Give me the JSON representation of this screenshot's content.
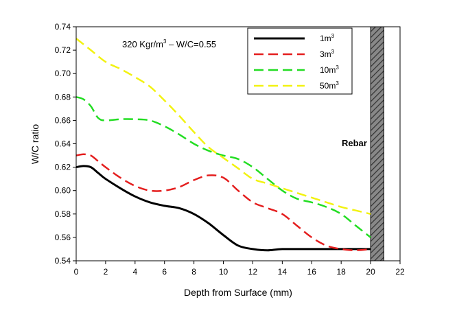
{
  "chart_data": {
    "type": "line",
    "annotation": {
      "text": "320 Kgr/m",
      "sup": "3",
      "suffix": " – W/C=0.55"
    },
    "rebar_label": "Rebar",
    "rebar_x_range": [
      20,
      20.9
    ],
    "xlabel": "Depth from Surface (mm)",
    "ylabel": "W/C ratio",
    "xlim": [
      0,
      22
    ],
    "ylim": [
      0.54,
      0.74
    ],
    "x_ticks": [
      0,
      2,
      4,
      6,
      8,
      10,
      12,
      14,
      16,
      18,
      20,
      22
    ],
    "y_ticks": [
      "0.54",
      "0.56",
      "0.58",
      "0.60",
      "0.62",
      "0.64",
      "0.66",
      "0.68",
      "0.70",
      "0.72",
      "0.74"
    ],
    "grid": false,
    "legend_position": "top-right",
    "series": [
      {
        "name": "1m",
        "name_sup": "3",
        "color": "#000000",
        "dash": "solid",
        "x": [
          0,
          0.5,
          1,
          1.5,
          2,
          3,
          4,
          5,
          6,
          7,
          8,
          9,
          10,
          11,
          12,
          13,
          14,
          16,
          18,
          19,
          20
        ],
        "y": [
          0.62,
          0.621,
          0.62,
          0.615,
          0.61,
          0.602,
          0.595,
          0.59,
          0.587,
          0.585,
          0.58,
          0.572,
          0.562,
          0.553,
          0.55,
          0.549,
          0.55,
          0.55,
          0.55,
          0.55,
          0.55
        ]
      },
      {
        "name": "3m",
        "name_sup": "3",
        "color": "#e41e1e",
        "dash": "dashed",
        "x": [
          0,
          0.5,
          1,
          1.5,
          2,
          3,
          4,
          5,
          6,
          7,
          8,
          9,
          10,
          11,
          12,
          13,
          14,
          15,
          16,
          17,
          18,
          19,
          20
        ],
        "y": [
          0.63,
          0.631,
          0.63,
          0.625,
          0.62,
          0.611,
          0.604,
          0.6,
          0.6,
          0.603,
          0.609,
          0.613,
          0.611,
          0.6,
          0.59,
          0.585,
          0.58,
          0.57,
          0.56,
          0.553,
          0.55,
          0.549,
          0.55
        ]
      },
      {
        "name": "10m",
        "name_sup": "3",
        "color": "#22dd22",
        "dash": "dashed",
        "x": [
          0,
          0.5,
          1,
          1.5,
          2,
          3,
          4,
          5,
          6,
          7,
          8,
          9,
          10,
          11,
          12,
          13,
          14,
          15,
          16,
          17,
          18,
          19,
          20
        ],
        "y": [
          0.68,
          0.678,
          0.672,
          0.662,
          0.66,
          0.661,
          0.661,
          0.66,
          0.655,
          0.648,
          0.64,
          0.634,
          0.63,
          0.627,
          0.62,
          0.61,
          0.6,
          0.593,
          0.59,
          0.586,
          0.58,
          0.57,
          0.56
        ]
      },
      {
        "name": "50m",
        "name_sup": "3",
        "color": "#f2f211",
        "dash": "dashed",
        "x": [
          0,
          1,
          2,
          3,
          4,
          5,
          6,
          7,
          8,
          9,
          10,
          11,
          12,
          13,
          14,
          15,
          16,
          17,
          18,
          19,
          20
        ],
        "y": [
          0.73,
          0.72,
          0.71,
          0.704,
          0.697,
          0.689,
          0.677,
          0.664,
          0.65,
          0.637,
          0.628,
          0.619,
          0.61,
          0.606,
          0.602,
          0.598,
          0.594,
          0.59,
          0.586,
          0.583,
          0.58
        ]
      }
    ]
  }
}
